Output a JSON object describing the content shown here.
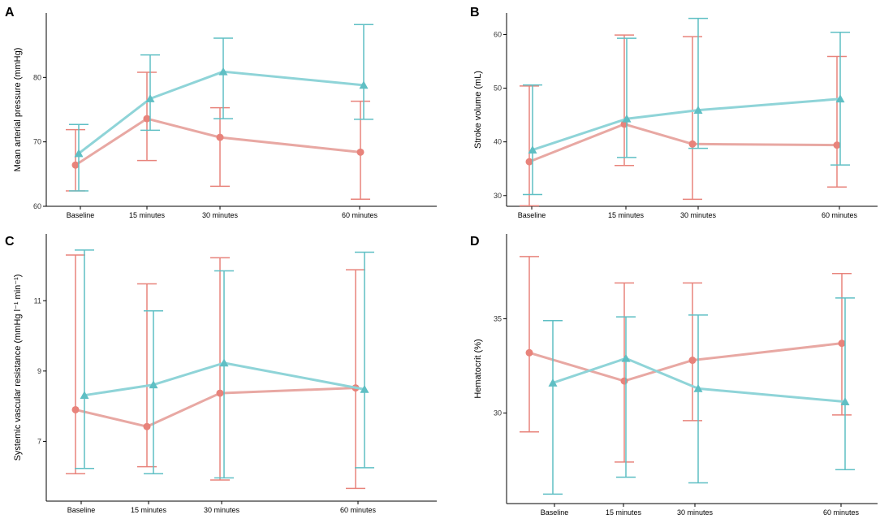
{
  "colors": {
    "series_red": "#e8837b",
    "series_red_line": "#e8a8a3",
    "series_teal": "#5fbfc4",
    "series_teal_line": "#8fd4d8",
    "axis": "#000000"
  },
  "chart_data": [
    {
      "panel": "A",
      "type": "line",
      "categories": [
        "Baseline",
        "15 minutes",
        "30 minutes",
        "60 minutes"
      ],
      "x": [
        0,
        15,
        30,
        60
      ],
      "ylabel": "Mean arterial pressure (mmHg)",
      "ylim": [
        60,
        90
      ],
      "yticks": [
        60,
        70,
        80
      ],
      "series": [
        {
          "name": "red",
          "marker": "circle",
          "values": [
            66.4,
            73.6,
            70.7,
            68.4
          ],
          "lower": [
            62.4,
            67.1,
            63.1,
            61.1
          ],
          "upper": [
            71.9,
            80.8,
            75.3,
            76.3
          ]
        },
        {
          "name": "teal",
          "marker": "triangle",
          "values": [
            68.2,
            76.7,
            80.9,
            78.8
          ],
          "lower": [
            62.4,
            71.8,
            73.6,
            73.5
          ],
          "upper": [
            72.7,
            83.5,
            86.1,
            88.2
          ]
        }
      ]
    },
    {
      "panel": "B",
      "type": "line",
      "categories": [
        "Baseline",
        "15 minutes",
        "30 minutes",
        "60 minutes"
      ],
      "x": [
        0,
        15,
        30,
        60
      ],
      "ylabel": "Stroke volume (mL)",
      "ylim": [
        28,
        64
      ],
      "yticks": [
        30,
        40,
        50,
        60
      ],
      "series": [
        {
          "name": "red",
          "marker": "circle",
          "values": [
            36.3,
            43.3,
            39.6,
            39.4
          ],
          "lower": [
            28.1,
            35.6,
            29.3,
            31.6
          ],
          "upper": [
            50.4,
            59.9,
            59.6,
            55.9
          ]
        },
        {
          "name": "teal",
          "marker": "triangle",
          "values": [
            38.5,
            44.3,
            45.9,
            48.0
          ],
          "lower": [
            30.2,
            37.1,
            38.8,
            35.7
          ],
          "upper": [
            50.6,
            59.3,
            63.0,
            60.4
          ]
        }
      ]
    },
    {
      "panel": "C",
      "type": "line",
      "categories": [
        "Baseline",
        "15 minutes",
        "30 minutes",
        "60 minutes"
      ],
      "x": [
        0,
        15,
        30,
        60
      ],
      "ylabel": "Systemic vascular resistance (mmHg l⁻¹ min⁻¹)",
      "ylim": [
        5.3,
        12.9
      ],
      "yticks": [
        7,
        9,
        11
      ],
      "series": [
        {
          "name": "red",
          "marker": "circle",
          "values": [
            7.9,
            7.42,
            8.37,
            8.52
          ],
          "lower": [
            6.08,
            6.28,
            5.9,
            5.66
          ],
          "upper": [
            12.3,
            11.48,
            12.22,
            11.88
          ]
        },
        {
          "name": "teal",
          "marker": "triangle",
          "values": [
            8.31,
            8.61,
            9.23,
            8.48
          ],
          "lower": [
            6.23,
            6.08,
            5.96,
            6.25
          ],
          "upper": [
            12.44,
            10.71,
            11.85,
            12.38
          ]
        }
      ]
    },
    {
      "panel": "D",
      "type": "line",
      "categories": [
        "Baseline",
        "15 minutes",
        "30 minutes",
        "60 minutes"
      ],
      "x": [
        0,
        15,
        30,
        60
      ],
      "ylabel": "Hematocrit (%)",
      "ylim": [
        25.2,
        39.5
      ],
      "yticks": [
        30,
        35
      ],
      "series": [
        {
          "name": "red",
          "marker": "circle",
          "values": [
            33.2,
            31.7,
            32.8,
            33.7
          ],
          "lower": [
            29.0,
            27.4,
            29.6,
            29.9
          ],
          "upper": [
            38.3,
            36.9,
            36.9,
            37.4
          ]
        },
        {
          "name": "teal",
          "marker": "triangle",
          "values": [
            31.6,
            32.9,
            31.3,
            30.6
          ],
          "lower": [
            25.7,
            26.6,
            26.3,
            27.0
          ],
          "upper": [
            34.9,
            35.1,
            35.2,
            36.1
          ]
        }
      ]
    }
  ]
}
